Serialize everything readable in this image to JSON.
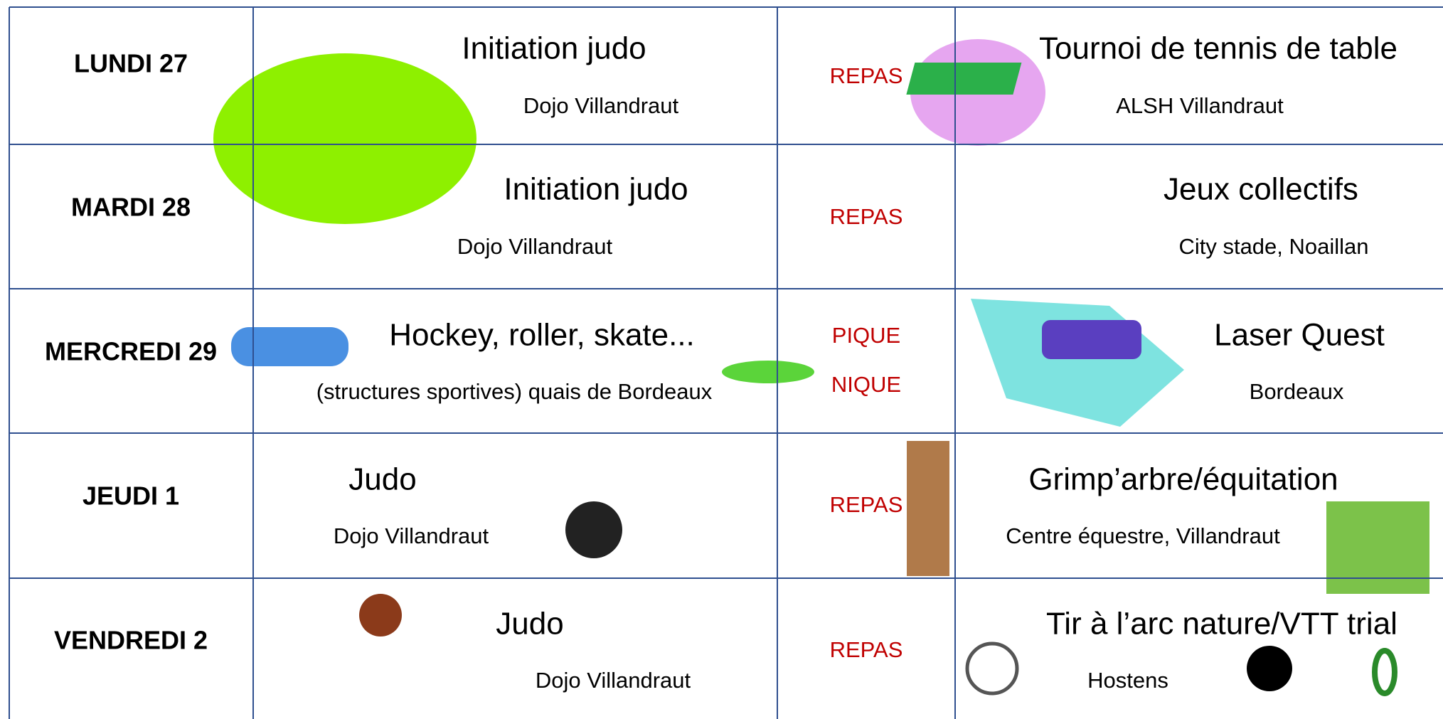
{
  "rows": [
    {
      "day": "LUNDI 27",
      "activity": "Initiation judo",
      "location": "Dojo Villandraut",
      "meal": [
        "REPAS"
      ],
      "activity2": "Tournoi de tennis de table",
      "location2": "ALSH Villandraut"
    },
    {
      "day": "MARDI 28",
      "activity": "Initiation judo",
      "location": "Dojo Villandraut",
      "meal": [
        "REPAS"
      ],
      "activity2": "Jeux collectifs",
      "location2": "City stade, Noaillan"
    },
    {
      "day": "MERCREDI 29",
      "activity": "Hockey, roller, skate...",
      "location": "(structures sportives) quais de Bordeaux",
      "meal": [
        "PIQUE",
        "NIQUE"
      ],
      "activity2": "Laser Quest",
      "location2": "Bordeaux"
    },
    {
      "day": "JEUDI 1",
      "activity": "Judo",
      "location": "Dojo Villandraut",
      "meal": [
        "REPAS"
      ],
      "activity2": "Grimp’arbre/équitation",
      "location2": "Centre équestre, Villandraut"
    },
    {
      "day": "VENDREDI 2",
      "activity": "Judo",
      "location": "Dojo Villandraut",
      "meal": [
        "REPAS"
      ],
      "activity2": "Tir à l’arc nature/VTT trial",
      "location2": "Hostens"
    }
  ]
}
